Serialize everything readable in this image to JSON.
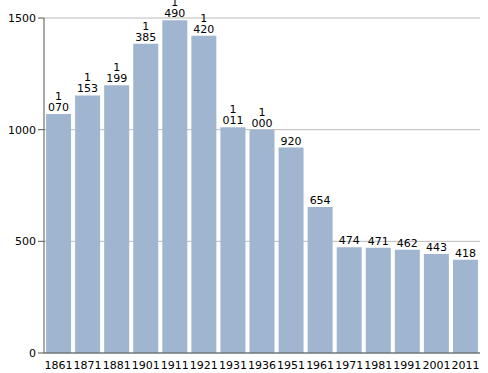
{
  "chart_data": {
    "type": "bar",
    "categories": [
      "1861",
      "1871",
      "1881",
      "1901",
      "1911",
      "1921",
      "1931",
      "1936",
      "1951",
      "1961",
      "1971",
      "1981",
      "1991",
      "2001",
      "2011"
    ],
    "values": [
      1070,
      1153,
      1199,
      1385,
      1490,
      1420,
      1011,
      1000,
      920,
      654,
      474,
      471,
      462,
      443,
      418
    ],
    "value_labels": [
      "1 070",
      "1 153",
      "1 199",
      "1 385",
      "1 490",
      "1 420",
      "1 011",
      "1 000",
      "920",
      "654",
      "474",
      "471",
      "462",
      "443",
      "418"
    ],
    "color": "#a0b6d0",
    "ylim": [
      0,
      1500
    ],
    "yticks": [
      0,
      500,
      1000,
      1500
    ],
    "grid": true,
    "data_labels": true
  }
}
